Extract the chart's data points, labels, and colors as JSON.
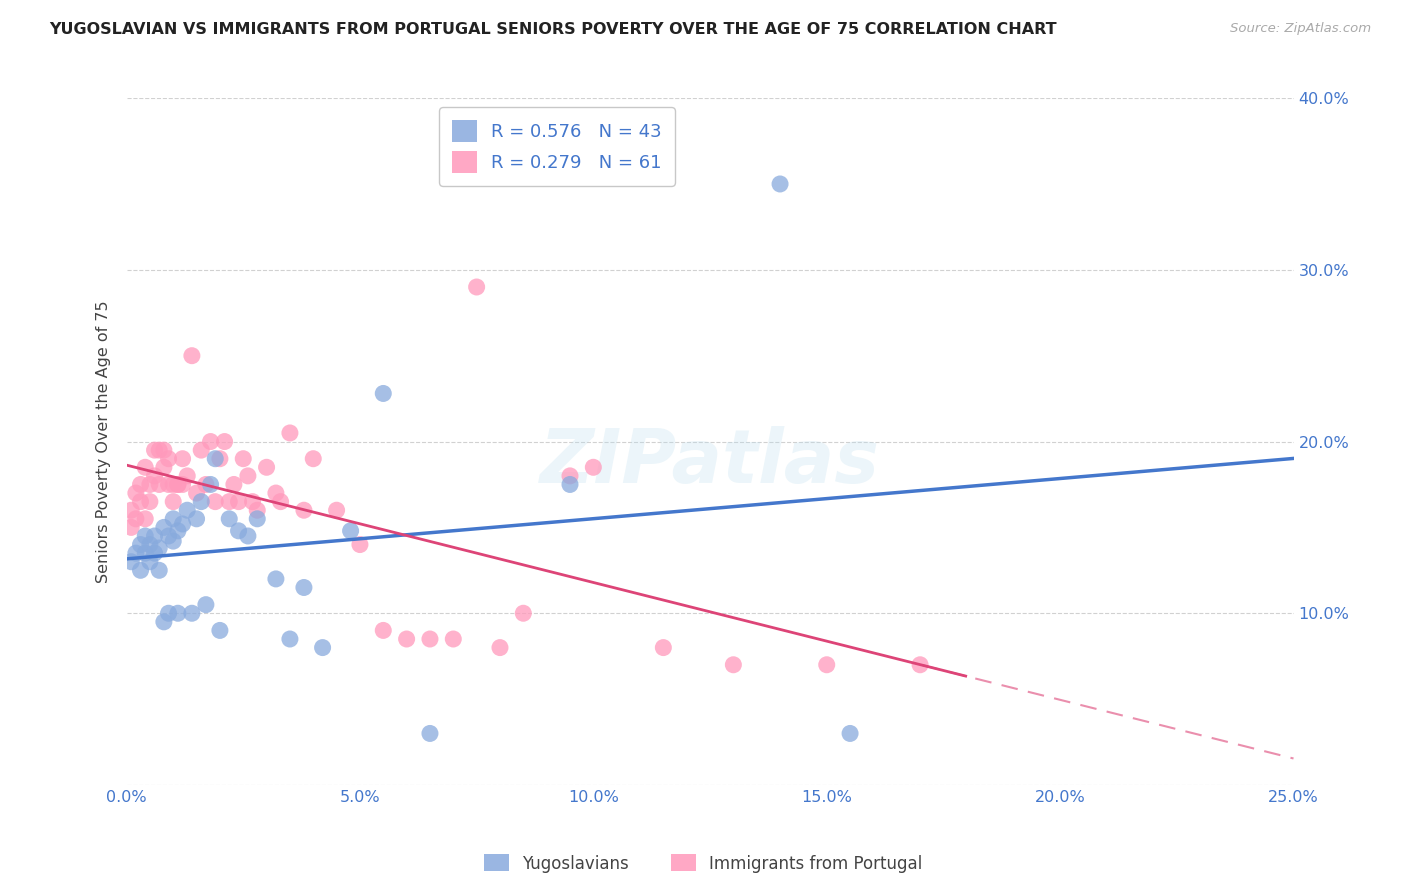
{
  "title": "YUGOSLAVIAN VS IMMIGRANTS FROM PORTUGAL SENIORS POVERTY OVER THE AGE OF 75 CORRELATION CHART",
  "source": "Source: ZipAtlas.com",
  "ylabel": "Seniors Poverty Over the Age of 75",
  "xlim": [
    0.0,
    0.25
  ],
  "ylim": [
    0.0,
    0.4
  ],
  "xticks": [
    0.0,
    0.05,
    0.1,
    0.15,
    0.2,
    0.25
  ],
  "yticks": [
    0.1,
    0.2,
    0.3,
    0.4
  ],
  "xtick_labels": [
    "0.0%",
    "5.0%",
    "10.0%",
    "15.0%",
    "20.0%",
    "25.0%"
  ],
  "ytick_labels_right": [
    "10.0%",
    "20.0%",
    "30.0%",
    "40.0%"
  ],
  "grid_color": "#cccccc",
  "background_color": "#ffffff",
  "yugoslavian_color": "#88aadd",
  "portugal_color": "#ff99bb",
  "trend_yug_color": "#4477cc",
  "trend_port_color": "#dd4477",
  "watermark": "ZIPatlas",
  "legend_R_yug": "0.576",
  "legend_N_yug": "43",
  "legend_R_port": "0.279",
  "legend_N_port": "61",
  "tick_color": "#4477cc",
  "yug_x": [
    0.001,
    0.002,
    0.003,
    0.003,
    0.004,
    0.004,
    0.005,
    0.005,
    0.006,
    0.006,
    0.007,
    0.007,
    0.008,
    0.008,
    0.009,
    0.009,
    0.01,
    0.01,
    0.011,
    0.011,
    0.012,
    0.013,
    0.014,
    0.015,
    0.016,
    0.017,
    0.018,
    0.019,
    0.02,
    0.022,
    0.024,
    0.026,
    0.028,
    0.032,
    0.035,
    0.038,
    0.042,
    0.048,
    0.055,
    0.065,
    0.095,
    0.14,
    0.155
  ],
  "yug_y": [
    0.13,
    0.135,
    0.125,
    0.14,
    0.135,
    0.145,
    0.13,
    0.14,
    0.135,
    0.145,
    0.125,
    0.138,
    0.095,
    0.15,
    0.1,
    0.145,
    0.142,
    0.155,
    0.1,
    0.148,
    0.152,
    0.16,
    0.1,
    0.155,
    0.165,
    0.105,
    0.175,
    0.19,
    0.09,
    0.155,
    0.148,
    0.145,
    0.155,
    0.12,
    0.085,
    0.115,
    0.08,
    0.148,
    0.228,
    0.03,
    0.175,
    0.35,
    0.03
  ],
  "port_x": [
    0.001,
    0.001,
    0.002,
    0.002,
    0.003,
    0.003,
    0.004,
    0.004,
    0.005,
    0.005,
    0.006,
    0.006,
    0.007,
    0.007,
    0.008,
    0.008,
    0.009,
    0.009,
    0.01,
    0.01,
    0.011,
    0.011,
    0.012,
    0.012,
    0.013,
    0.014,
    0.015,
    0.016,
    0.017,
    0.018,
    0.019,
    0.02,
    0.021,
    0.022,
    0.023,
    0.024,
    0.025,
    0.026,
    0.027,
    0.028,
    0.03,
    0.032,
    0.033,
    0.035,
    0.038,
    0.04,
    0.045,
    0.05,
    0.055,
    0.06,
    0.065,
    0.07,
    0.075,
    0.08,
    0.085,
    0.095,
    0.1,
    0.115,
    0.13,
    0.15,
    0.17
  ],
  "port_y": [
    0.15,
    0.16,
    0.155,
    0.17,
    0.165,
    0.175,
    0.155,
    0.185,
    0.175,
    0.165,
    0.195,
    0.18,
    0.195,
    0.175,
    0.185,
    0.195,
    0.175,
    0.19,
    0.165,
    0.175,
    0.175,
    0.175,
    0.175,
    0.19,
    0.18,
    0.25,
    0.17,
    0.195,
    0.175,
    0.2,
    0.165,
    0.19,
    0.2,
    0.165,
    0.175,
    0.165,
    0.19,
    0.18,
    0.165,
    0.16,
    0.185,
    0.17,
    0.165,
    0.205,
    0.16,
    0.19,
    0.16,
    0.14,
    0.09,
    0.085,
    0.085,
    0.085,
    0.29,
    0.08,
    0.1,
    0.18,
    0.185,
    0.08,
    0.07,
    0.07,
    0.07
  ]
}
